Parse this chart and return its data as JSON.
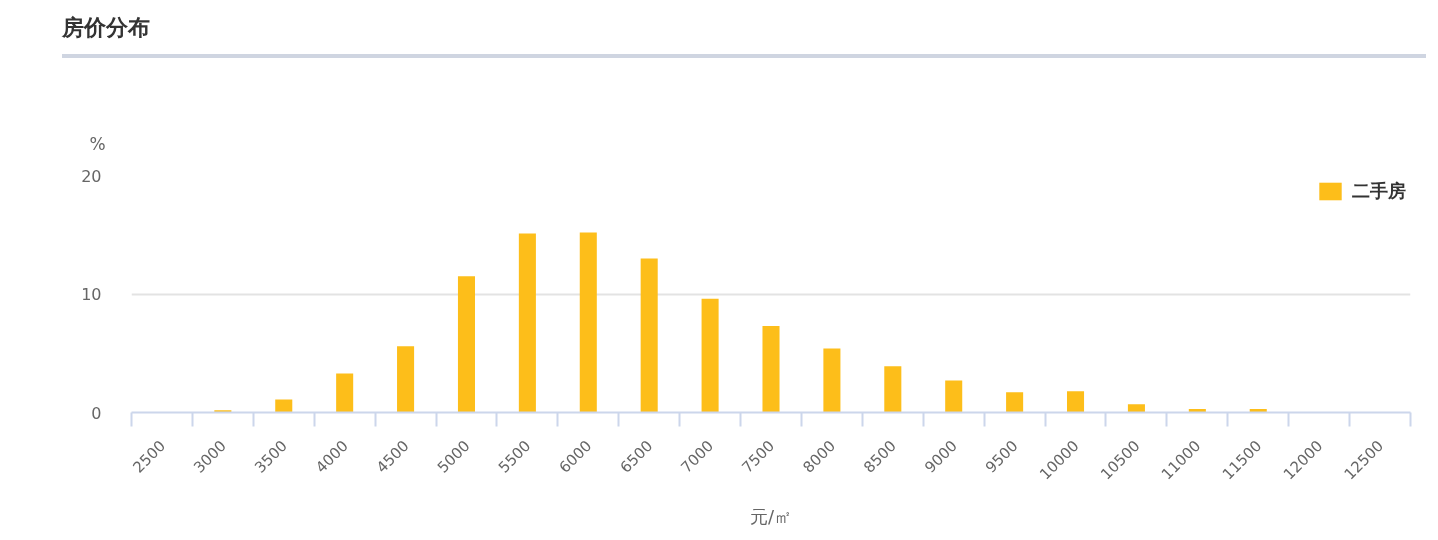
{
  "chart_data": {
    "type": "bar",
    "title": "房价分布",
    "xlabel": "元/㎡",
    "ylabel": "%",
    "categories": [
      "2500",
      "3000",
      "3500",
      "4000",
      "4500",
      "5000",
      "5500",
      "6000",
      "6500",
      "7000",
      "7500",
      "8000",
      "8500",
      "9000",
      "9500",
      "10000",
      "10500",
      "11000",
      "11500",
      "12000",
      "12500"
    ],
    "series": [
      {
        "name": "二手房",
        "color": "#fdbe1a",
        "values": [
          0,
          0.2,
          1.1,
          3.3,
          5.6,
          11.5,
          15.1,
          15.2,
          13.0,
          9.6,
          7.3,
          5.4,
          3.9,
          2.7,
          1.7,
          1.8,
          0.7,
          0.3,
          0.3,
          0,
          0
        ]
      }
    ],
    "ylim": [
      0,
      20
    ],
    "yticks": [
      0,
      10,
      20
    ],
    "grid": "y",
    "legend": "top right"
  }
}
